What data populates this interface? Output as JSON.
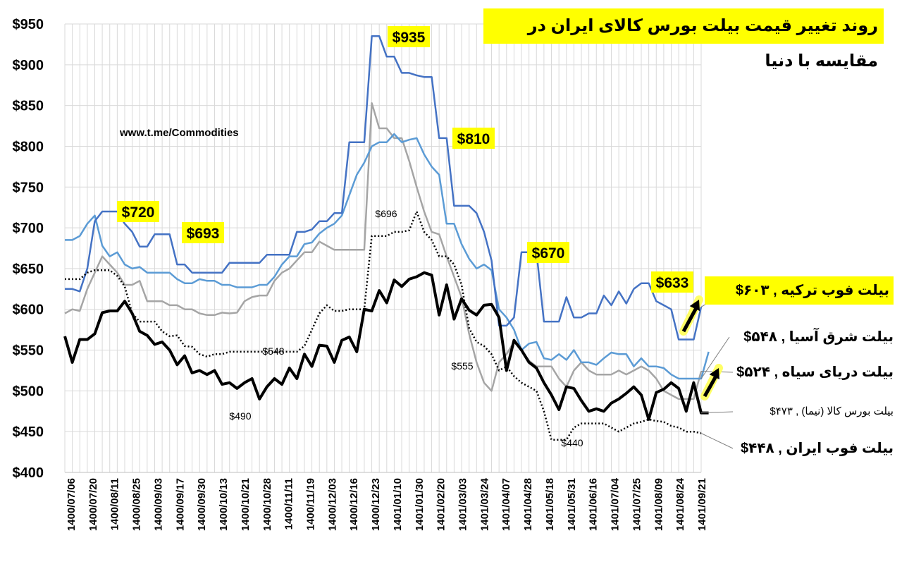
{
  "title": "روند تغییر قیمت بیلت بورس کالای ایران در مقایسه با دنیا",
  "watermark": "www.t.me/Commodities",
  "colors": {
    "turkey": "#4472c4",
    "asia": "#5b9bd5",
    "blacksea": "#a5a5a5",
    "ime": "#000000",
    "iran": "#000000",
    "highlight": "#ffff00",
    "grid": "#d9d9d9"
  },
  "legend": {
    "turkey": "بیلت فوب ترکیه ,  ۶۰۳$",
    "asia": "بیلت شرق آسیا ,  ۵۴۸$",
    "blacksea": "بیلت دریای سیاه ,  ۵۲۴$",
    "ime": "بیلت بورس کالا (نیما) ,  ۴۷۳$",
    "iran": "بیلت فوب ایران ,  ۴۴۸$"
  },
  "chart_data": {
    "type": "line",
    "ylim": [
      400,
      950
    ],
    "yticks": [
      "$400",
      "$450",
      "$500",
      "$550",
      "$600",
      "$650",
      "$700",
      "$750",
      "$800",
      "$850",
      "$900",
      "$950"
    ],
    "xtick_labels": [
      "1400/07/06",
      "1400/07/20",
      "1400/08/11",
      "1400/08/25",
      "1400/09/03",
      "1400/09/17",
      "1400/09/30",
      "1400/10/13",
      "1400/10/21",
      "1400/10/28",
      "1400/11/11",
      "1400/11/19",
      "1400/12/03",
      "1400/12/16",
      "1400/12/23",
      "1401/01/10",
      "1401/01/30",
      "1401/02/20",
      "1401/03/03",
      "1401/03/24",
      "1401/04/07",
      "1401/04/28",
      "1401/05/18",
      "1401/05/31",
      "1401/06/16",
      "1401/07/04",
      "1401/07/25",
      "1401/08/09",
      "1401/08/24",
      "1401/09/21"
    ],
    "series": [
      {
        "name": "بیلت فوب ترکیه",
        "key": "turkey",
        "style": "solid",
        "width": 2.5,
        "values": [
          625,
          625,
          622,
          650,
          708,
          720,
          720,
          720,
          705,
          695,
          677,
          677,
          692,
          692,
          692,
          655,
          655,
          645,
          645,
          645,
          645,
          645,
          657,
          657,
          657,
          657,
          657,
          667,
          667,
          667,
          667,
          695,
          695,
          698,
          708,
          708,
          718,
          718,
          805,
          805,
          805,
          935,
          935,
          910,
          910,
          890,
          890,
          887,
          885,
          885,
          810,
          810,
          727,
          727,
          727,
          718,
          695,
          660,
          580,
          580,
          590,
          670,
          670,
          670,
          585,
          585,
          585,
          615,
          590,
          590,
          595,
          595,
          617,
          605,
          622,
          607,
          625,
          632,
          632,
          610,
          605,
          600,
          563,
          563,
          563,
          603
        ]
      },
      {
        "name": "بیلت شرق آسیا",
        "key": "asia",
        "style": "solid",
        "width": 2.5,
        "values": [
          685,
          685,
          690,
          705,
          715,
          678,
          665,
          670,
          655,
          650,
          652,
          645,
          645,
          645,
          645,
          637,
          632,
          632,
          637,
          635,
          635,
          630,
          630,
          627,
          627,
          627,
          630,
          630,
          640,
          655,
          665,
          665,
          680,
          682,
          693,
          700,
          705,
          715,
          740,
          765,
          780,
          800,
          805,
          805,
          815,
          805,
          808,
          810,
          790,
          775,
          765,
          705,
          705,
          680,
          662,
          650,
          655,
          648,
          600,
          590,
          575,
          550,
          558,
          560,
          540,
          538,
          545,
          538,
          550,
          535,
          535,
          532,
          540,
          547,
          545,
          545,
          530,
          540,
          530,
          530,
          528,
          520,
          515,
          515,
          515,
          515,
          548
        ]
      },
      {
        "name": "بیلت دریای سیاه",
        "key": "blacksea",
        "style": "solid",
        "width": 2.5,
        "values": [
          595,
          600,
          598,
          625,
          645,
          665,
          655,
          645,
          630,
          630,
          635,
          610,
          610,
          610,
          605,
          605,
          600,
          600,
          595,
          593,
          593,
          596,
          595,
          596,
          610,
          615,
          617,
          617,
          635,
          645,
          650,
          660,
          670,
          670,
          683,
          678,
          673,
          673,
          673,
          673,
          673,
          853,
          822,
          822,
          810,
          810,
          782,
          750,
          720,
          695,
          692,
          665,
          640,
          615,
          570,
          535,
          510,
          500,
          535,
          545,
          560,
          550,
          537,
          530,
          530,
          530,
          515,
          505,
          525,
          535,
          525,
          520,
          520,
          520,
          525,
          520,
          525,
          530,
          525,
          515,
          500,
          495,
          490,
          490,
          490,
          524
        ]
      },
      {
        "name": "بیلت بورس کالا (نیما)",
        "key": "ime",
        "style": "solid",
        "width": 4,
        "values": [
          567,
          535,
          563,
          563,
          570,
          596,
          598,
          598,
          610,
          595,
          573,
          568,
          557,
          560,
          550,
          532,
          543,
          522,
          525,
          520,
          525,
          508,
          510,
          503,
          510,
          515,
          490,
          505,
          515,
          508,
          528,
          515,
          545,
          530,
          556,
          555,
          535,
          562,
          566,
          548,
          600,
          598,
          623,
          608,
          636,
          628,
          637,
          640,
          645,
          642,
          593,
          630,
          588,
          613,
          599,
          593,
          605,
          606,
          590,
          525,
          562,
          550,
          535,
          528,
          510,
          495,
          477,
          505,
          503,
          488,
          475,
          478,
          475,
          485,
          490,
          497,
          505,
          495,
          465,
          498,
          502,
          510,
          503,
          475,
          510,
          473,
          473
        ]
      },
      {
        "name": "بیلت فوب ایران",
        "key": "iran",
        "style": "dotted",
        "width": 2.5,
        "values": [
          637,
          637,
          637,
          645,
          648,
          648,
          648,
          641,
          628,
          595,
          585,
          585,
          585,
          573,
          567,
          568,
          555,
          554,
          545,
          542,
          545,
          545,
          548,
          548,
          548,
          548,
          548,
          548,
          548,
          548,
          548,
          548,
          555,
          575,
          595,
          605,
          598,
          598,
          600,
          600,
          600,
          690,
          690,
          690,
          695,
          695,
          697,
          720,
          695,
          685,
          665,
          665,
          655,
          630,
          577,
          560,
          555,
          545,
          525,
          530,
          518,
          510,
          505,
          500,
          475,
          440,
          440,
          440,
          455,
          460,
          460,
          460,
          460,
          455,
          450,
          455,
          460,
          462,
          465,
          463,
          462,
          457,
          455,
          450,
          450,
          448
        ]
      }
    ],
    "annotations": [
      {
        "text": "$720",
        "highlight": true
      },
      {
        "text": "$693",
        "highlight": true
      },
      {
        "text": "$935",
        "highlight": true
      },
      {
        "text": "$810",
        "highlight": true
      },
      {
        "text": "$670",
        "highlight": true
      },
      {
        "text": "$633",
        "highlight": true
      },
      {
        "text": "$696",
        "highlight": false
      },
      {
        "text": "$548",
        "highlight": false
      },
      {
        "text": "$555",
        "highlight": false
      },
      {
        "text": "$490",
        "highlight": false
      },
      {
        "text": "$440",
        "highlight": false
      }
    ]
  }
}
